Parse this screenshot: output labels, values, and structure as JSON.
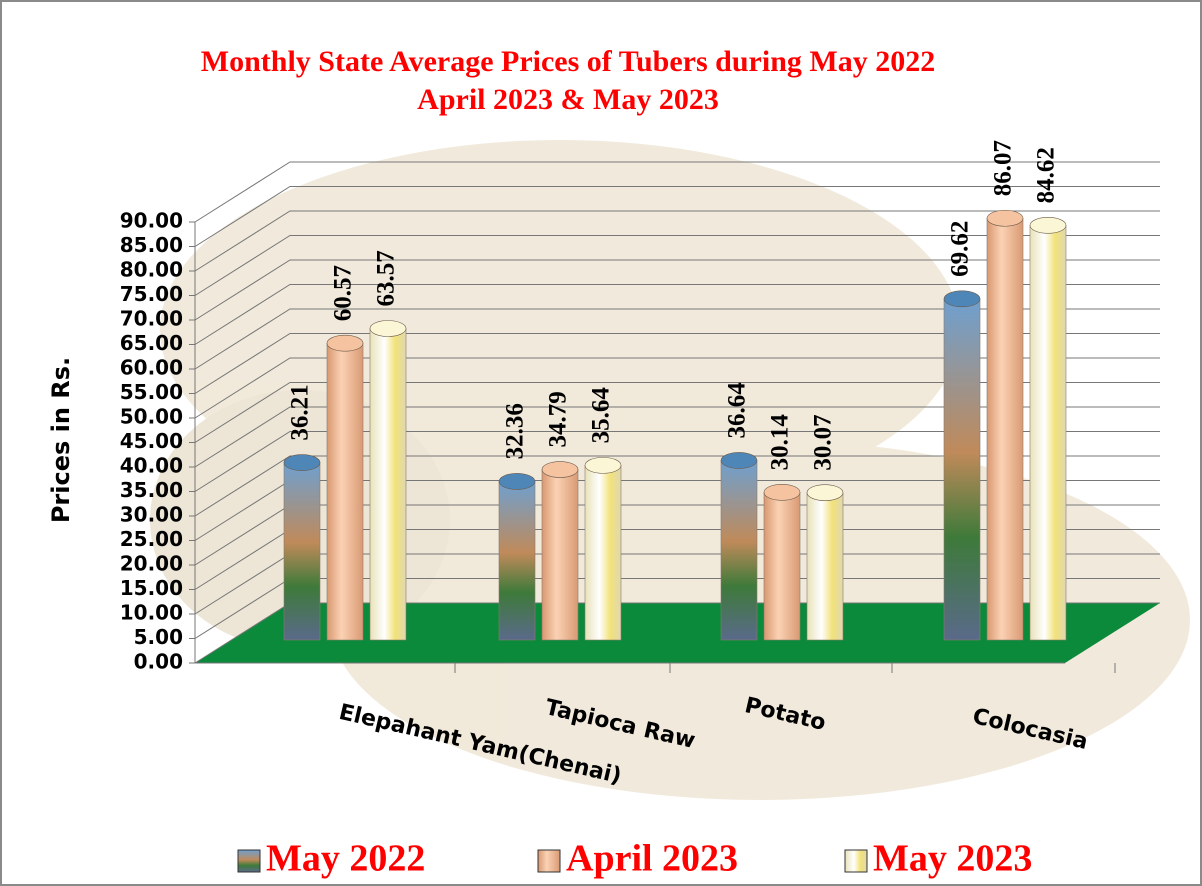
{
  "chart_data": {
    "type": "bar",
    "title": [
      "Monthly State Average  Prices of Tubers during  May 2022",
      "April 2023  &  May 2023"
    ],
    "y_label": "Prices in Rs.",
    "categories": [
      "Elepahant Yam(Chenai)",
      "Tapioca  Raw",
      "Potato",
      "Colocasia"
    ],
    "series": [
      {
        "name": "May 2022",
        "color": "#4f86b8",
        "values": [
          36.21,
          32.36,
          36.64,
          69.62
        ]
      },
      {
        "name": "April 2023",
        "color": "#f6c3a0",
        "values": [
          60.57,
          34.79,
          30.14,
          86.07
        ]
      },
      {
        "name": "May 2023",
        "color": "#fbf6d6",
        "values": [
          63.57,
          35.64,
          30.07,
          84.62
        ]
      }
    ],
    "ylim": [
      0,
      90
    ],
    "yticks": [
      {
        "value": 0,
        "label": "0.00"
      },
      {
        "value": 5,
        "label": "5.00"
      },
      {
        "value": 10,
        "label": "10.00"
      },
      {
        "value": 15,
        "label": "15.00"
      },
      {
        "value": 20,
        "label": "20.00"
      },
      {
        "value": 25,
        "label": "25.00"
      },
      {
        "value": 30,
        "label": "30.00"
      },
      {
        "value": 35,
        "label": "35.00"
      },
      {
        "value": 40,
        "label": "40.00"
      },
      {
        "value": 45,
        "label": "45.00"
      },
      {
        "value": 50,
        "label": "50.00"
      },
      {
        "value": 55,
        "label": "55.00"
      },
      {
        "value": 60,
        "label": "60.00"
      },
      {
        "value": 65,
        "label": "65.00"
      },
      {
        "value": 70,
        "label": "70.00"
      },
      {
        "value": 75,
        "label": "75.00"
      },
      {
        "value": 80,
        "label": "80.00"
      },
      {
        "value": 85,
        "label": "85.00"
      },
      {
        "value": 90,
        "label": "90.00"
      }
    ],
    "grid": true,
    "floor_color": "#0a8a3a",
    "legend": "bottom"
  }
}
